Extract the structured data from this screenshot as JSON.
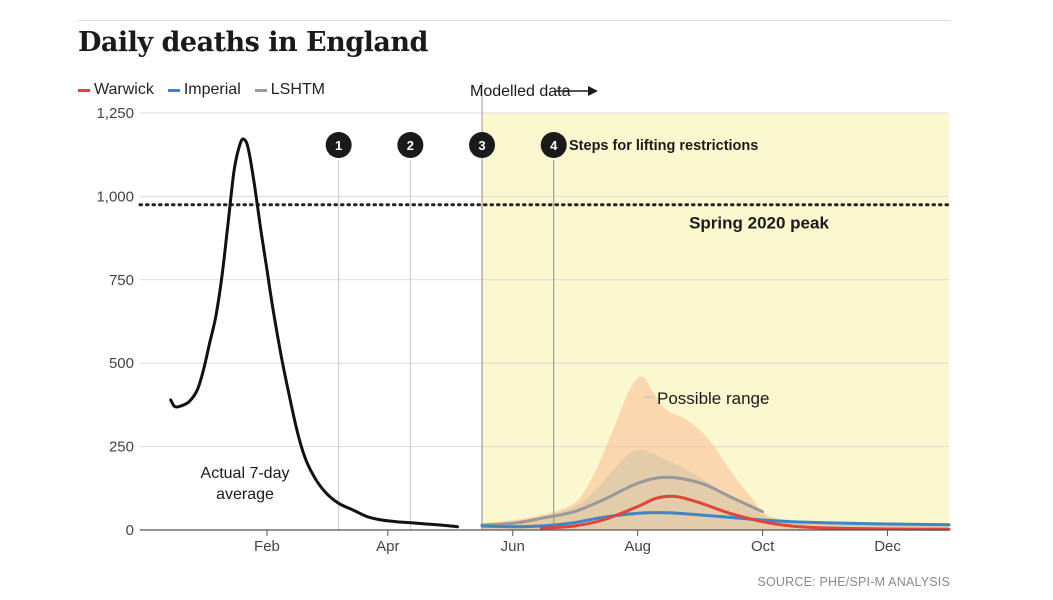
{
  "title": "Daily deaths in England",
  "source": "SOURCE: PHE/SPI-M ANALYSIS",
  "chart_data": {
    "type": "line",
    "title": "Daily deaths in England",
    "xlabel": "",
    "ylabel": "",
    "ylim": [
      0,
      1250
    ],
    "y_ticks": [
      0,
      250,
      500,
      750,
      1000,
      1250
    ],
    "y_tick_labels": [
      "0",
      "250",
      "500",
      "750",
      "1,000",
      "1,250"
    ],
    "x_tick_labels": [
      "Feb",
      "Apr",
      "Jun",
      "Aug",
      "Oct",
      "Dec"
    ],
    "grid": true,
    "legend": "top-left",
    "legend_entries": [
      {
        "name": "Warwick",
        "color": "#e0443a"
      },
      {
        "name": "Imperial",
        "color": "#3d85c6"
      },
      {
        "name": "LSHTM",
        "color": "#999999"
      }
    ],
    "actual_label": "Actual 7-day average",
    "actual": {
      "color": "#111111",
      "x": [
        "Dec 16",
        "Dec 18",
        "Dec 21",
        "Dec 25",
        "Dec 29",
        "Jan 1",
        "Jan 4",
        "Jan 7",
        "Jan 10",
        "Jan 13",
        "Jan 16",
        "Jan 19",
        "Jan 21",
        "Jan 23",
        "Jan 26",
        "Jan 29",
        "Feb 1",
        "Feb 4",
        "Feb 8",
        "Feb 12",
        "Feb 16",
        "Feb 20",
        "Feb 25",
        "Mar 2",
        "Mar 8",
        "Mar 15",
        "Mar 22",
        "Mar 29",
        "Apr 5",
        "Apr 12",
        "Apr 20",
        "Apr 28",
        "May 5"
      ],
      "values": [
        390,
        370,
        372,
        385,
        420,
        480,
        560,
        640,
        760,
        920,
        1080,
        1160,
        1170,
        1140,
        1030,
        900,
        780,
        660,
        520,
        400,
        290,
        210,
        150,
        110,
        80,
        60,
        40,
        30,
        25,
        22,
        18,
        14,
        10
      ]
    },
    "peak_reference": {
      "label": "Spring 2020 peak",
      "value": 975
    },
    "modelled_label": "Modelled data",
    "modelled_start": "May 17",
    "steps_label": "Steps for lifting restrictions",
    "steps": [
      {
        "label": "1",
        "date": "Mar 8"
      },
      {
        "label": "2",
        "date": "Apr 12"
      },
      {
        "label": "3",
        "date": "May 17"
      },
      {
        "label": "4",
        "date": "Jun 21"
      }
    ],
    "range_label": "Possible range",
    "series": [
      {
        "name": "Warwick",
        "color": "#e0443a",
        "x": [
          "Jun 15",
          "Jul 1",
          "Jul 15",
          "Aug 1",
          "Aug 10",
          "Aug 20",
          "Sep 1",
          "Sep 15",
          "Oct 1",
          "Oct 15",
          "Nov 1",
          "Dec 1",
          "Dec 31"
        ],
        "values": [
          5,
          12,
          30,
          70,
          95,
          100,
          80,
          50,
          25,
          12,
          6,
          3,
          2
        ]
      },
      {
        "name": "Imperial",
        "color": "#3d85c6",
        "x": [
          "May 17",
          "Jun 1",
          "Jun 15",
          "Jul 1",
          "Jul 15",
          "Aug 1",
          "Aug 15",
          "Sep 1",
          "Sep 15",
          "Oct 1",
          "Oct 15",
          "Nov 1",
          "Dec 1",
          "Dec 31"
        ],
        "values": [
          12,
          10,
          12,
          22,
          38,
          50,
          52,
          45,
          38,
          30,
          25,
          22,
          18,
          16
        ]
      },
      {
        "name": "LSHTM",
        "color": "#999999",
        "x": [
          "May 17",
          "Jun 1",
          "Jun 15",
          "Jul 1",
          "Jul 15",
          "Aug 1",
          "Aug 15",
          "Sep 1",
          "Sep 15",
          "Oct 1"
        ],
        "values": [
          15,
          20,
          35,
          55,
          90,
          140,
          158,
          140,
          100,
          55
        ]
      }
    ]
  }
}
